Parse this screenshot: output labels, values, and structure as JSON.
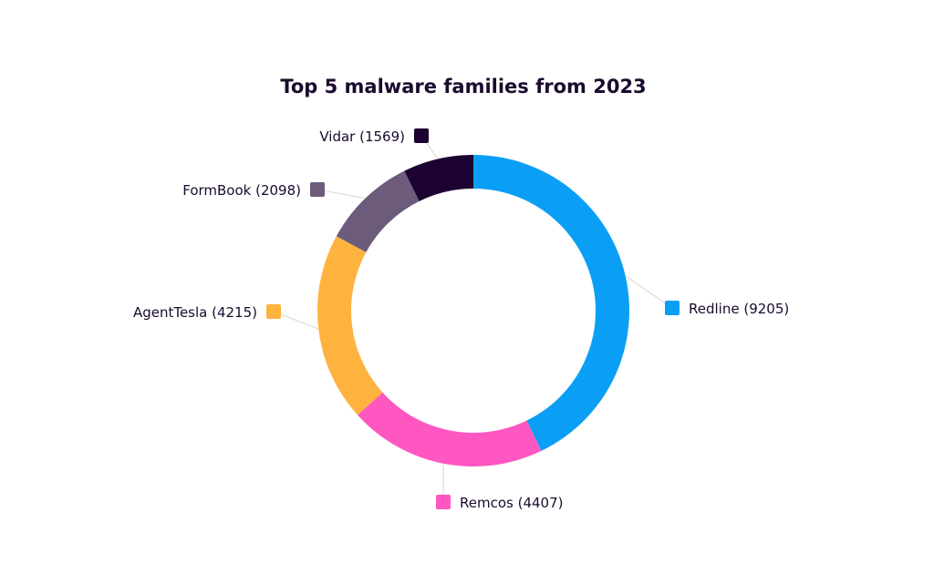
{
  "chart_data": {
    "type": "pie",
    "variant": "donut",
    "title": "Top 5 malware families from 2023",
    "slices": [
      {
        "label": "Redline (9205)",
        "name": "Redline",
        "value": 9205,
        "color": "#0a9ff5"
      },
      {
        "label": "Remcos (4407)",
        "name": "Remcos",
        "value": 4407,
        "color": "#ff57c1"
      },
      {
        "label": "AgentTesla (4215)",
        "name": "AgentTesla",
        "value": 4215,
        "color": "#ffb33f"
      },
      {
        "label": "FormBook (2098)",
        "name": "FormBook",
        "value": 2098,
        "color": "#6c5b7b"
      },
      {
        "label": "Vidar (1569)",
        "name": "Vidar",
        "value": 1569,
        "color": "#1b0230"
      }
    ],
    "legend": "none",
    "label_placement": "outside"
  }
}
